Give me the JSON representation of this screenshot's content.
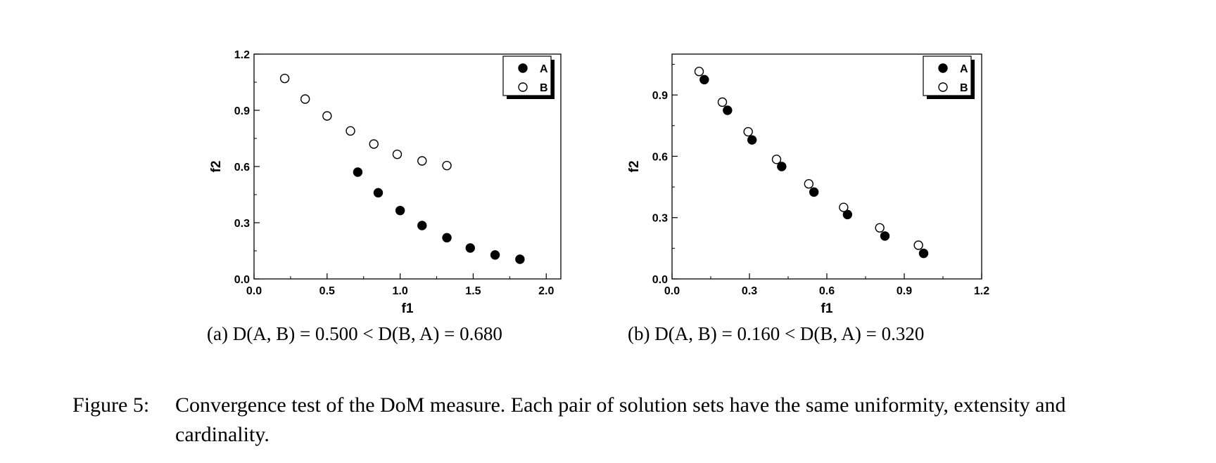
{
  "chart_data": [
    {
      "type": "scatter",
      "xlabel": "f1",
      "ylabel": "f2",
      "xlim": [
        0.0,
        2.1
      ],
      "ylim": [
        0.0,
        1.2
      ],
      "xticks": [
        "0.0",
        "0.5",
        "1.0",
        "1.5",
        "2.0"
      ],
      "yticks": [
        "0.0",
        "0.3",
        "0.6",
        "0.9",
        "1.2"
      ],
      "legend_position": "top-right",
      "series": [
        {
          "name": "A",
          "marker": "filled-circle",
          "x": [
            0.71,
            0.85,
            1.0,
            1.15,
            1.32,
            1.48,
            1.65,
            1.82
          ],
          "y": [
            0.57,
            0.46,
            0.365,
            0.285,
            0.22,
            0.165,
            0.128,
            0.105
          ]
        },
        {
          "name": "B",
          "marker": "open-circle",
          "x": [
            0.21,
            0.35,
            0.5,
            0.66,
            0.82,
            0.98,
            1.15,
            1.32
          ],
          "y": [
            1.07,
            0.96,
            0.87,
            0.79,
            0.72,
            0.665,
            0.63,
            0.605
          ]
        }
      ]
    },
    {
      "type": "scatter",
      "xlabel": "f1",
      "ylabel": "f2",
      "xlim": [
        0.0,
        1.2
      ],
      "ylim": [
        0.0,
        1.1
      ],
      "xticks": [
        "0.0",
        "0.3",
        "0.6",
        "0.9",
        "1.2"
      ],
      "yticks": [
        "0.0",
        "0.3",
        "0.6",
        "0.9"
      ],
      "legend_position": "top-right",
      "series": [
        {
          "name": "A",
          "marker": "filled-circle",
          "x": [
            0.125,
            0.215,
            0.31,
            0.425,
            0.55,
            0.68,
            0.825,
            0.975
          ],
          "y": [
            0.975,
            0.825,
            0.68,
            0.55,
            0.425,
            0.315,
            0.21,
            0.125
          ]
        },
        {
          "name": "B",
          "marker": "open-circle",
          "x": [
            0.105,
            0.195,
            0.295,
            0.405,
            0.53,
            0.665,
            0.805,
            0.955
          ],
          "y": [
            1.015,
            0.865,
            0.72,
            0.585,
            0.465,
            0.35,
            0.25,
            0.165
          ]
        }
      ]
    }
  ],
  "subcaptions": {
    "a": "(a) D(A, B) = 0.500 < D(B, A) = 0.680",
    "b": "(b) D(A, B) = 0.160 < D(B, A) = 0.320"
  },
  "caption": {
    "label": "Figure 5:",
    "text": "Convergence test of the DoM measure. Each pair of solution sets have the same uniformity, extensity and cardinality."
  }
}
